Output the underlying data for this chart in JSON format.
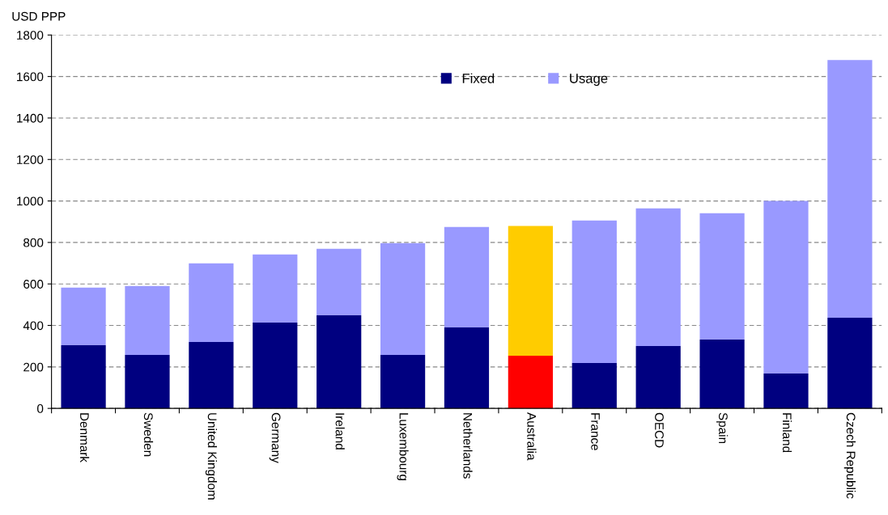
{
  "chart_data": {
    "type": "bar",
    "stacked": true,
    "ylabel": "USD PPP",
    "categories": [
      "Denmark",
      "Sweden",
      "United Kingdom",
      "Germany",
      "Ireland",
      "Luxembourg",
      "Netherlands",
      "Australia",
      "France",
      "OECD",
      "Spain",
      "Finland",
      "Czech Republic"
    ],
    "series": [
      {
        "name": "Fixed",
        "color": "#000080",
        "colors": [
          "#000080",
          "#000080",
          "#000080",
          "#000080",
          "#000080",
          "#000080",
          "#000080",
          "#ff0000",
          "#000080",
          "#000080",
          "#000080",
          "#000080",
          "#000080"
        ],
        "values": [
          305,
          258,
          320,
          414,
          449,
          258,
          390,
          254,
          219,
          301,
          332,
          168,
          437
        ]
      },
      {
        "name": "Usage",
        "color": "#9999ff",
        "colors": [
          "#9999ff",
          "#9999ff",
          "#9999ff",
          "#9999ff",
          "#9999ff",
          "#9999ff",
          "#9999ff",
          "#ffcc00",
          "#9999ff",
          "#9999ff",
          "#9999ff",
          "#9999ff",
          "#9999ff"
        ],
        "values": [
          277,
          332,
          379,
          328,
          320,
          539,
          485,
          625,
          687,
          663,
          609,
          832,
          1242
        ]
      }
    ],
    "ylim": [
      0,
      1800
    ],
    "yticks": [
      0,
      200,
      400,
      600,
      800,
      1000,
      1200,
      1400,
      1600,
      1800
    ],
    "grid": "y",
    "legend": "top"
  }
}
